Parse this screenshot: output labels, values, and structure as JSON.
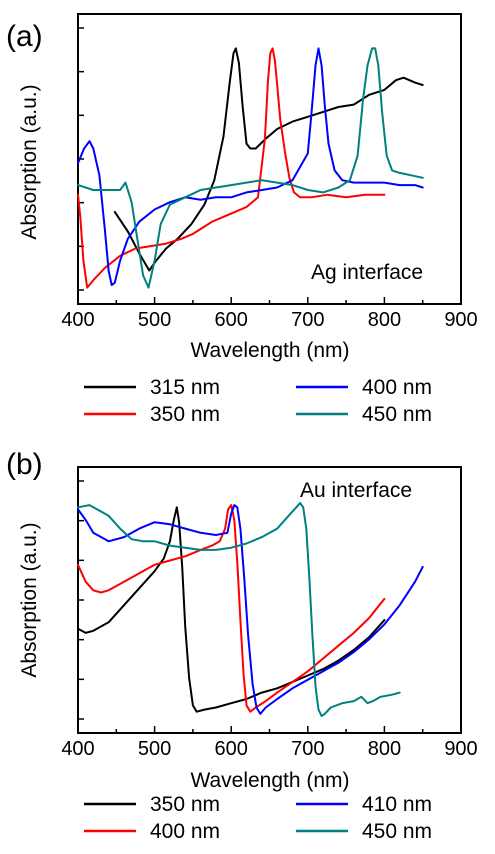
{
  "chart_data": [
    {
      "type": "line",
      "panel_label": "(a)",
      "annotation": "Ag interface",
      "xlabel": "Wavelength (nm)",
      "ylabel": "Absorption (a.u.)",
      "xlim": [
        400,
        900
      ],
      "ylim": [
        0,
        1.0
      ],
      "x_ticks": [
        400,
        500,
        600,
        700,
        800,
        900
      ],
      "x_tick_labels": [
        "400",
        "500",
        "600",
        "700",
        "800",
        "900"
      ],
      "legend_position": "below",
      "series": [
        {
          "name": "315 nm",
          "color": "#000000",
          "x": [
            448,
            465,
            480,
            493,
            502,
            515,
            530,
            548,
            565,
            578,
            590,
            598,
            603,
            606,
            610,
            615,
            620,
            625,
            632,
            645,
            660,
            680,
            700,
            720,
            740,
            760,
            780,
            800,
            815,
            825,
            840,
            850
          ],
          "y": [
            0.32,
            0.24,
            0.15,
            0.08,
            0.12,
            0.17,
            0.21,
            0.27,
            0.35,
            0.45,
            0.63,
            0.85,
            0.97,
            0.99,
            0.93,
            0.75,
            0.6,
            0.58,
            0.58,
            0.62,
            0.66,
            0.69,
            0.71,
            0.73,
            0.75,
            0.76,
            0.8,
            0.82,
            0.86,
            0.87,
            0.85,
            0.84
          ]
        },
        {
          "name": "350 nm",
          "color": "#ff0000",
          "x": [
            400,
            403,
            407,
            412,
            420,
            435,
            455,
            475,
            495,
            515,
            535,
            550,
            565,
            575,
            590,
            605,
            620,
            635,
            644,
            648,
            651,
            654,
            657,
            660,
            664,
            670,
            676,
            682,
            690,
            705,
            725,
            750,
            775,
            800
          ],
          "y": [
            0.39,
            0.3,
            0.12,
            0.01,
            0.04,
            0.09,
            0.14,
            0.17,
            0.18,
            0.19,
            0.21,
            0.23,
            0.26,
            0.28,
            0.3,
            0.32,
            0.34,
            0.38,
            0.62,
            0.86,
            0.97,
            0.99,
            0.94,
            0.84,
            0.7,
            0.57,
            0.46,
            0.4,
            0.38,
            0.38,
            0.39,
            0.38,
            0.39,
            0.39
          ]
        },
        {
          "name": "400 nm",
          "color": "#0000ff",
          "x": [
            400,
            408,
            415,
            420,
            428,
            435,
            440,
            444,
            448,
            455,
            465,
            480,
            500,
            520,
            540,
            560,
            580,
            600,
            620,
            640,
            660,
            680,
            700,
            705,
            710,
            714,
            718,
            722,
            727,
            735,
            745,
            760,
            780,
            800,
            820,
            840,
            850
          ],
          "y": [
            0.52,
            0.58,
            0.61,
            0.58,
            0.47,
            0.25,
            0.08,
            0.02,
            0.03,
            0.12,
            0.21,
            0.28,
            0.33,
            0.36,
            0.38,
            0.37,
            0.38,
            0.38,
            0.4,
            0.41,
            0.42,
            0.45,
            0.56,
            0.73,
            0.92,
            0.99,
            0.92,
            0.76,
            0.6,
            0.49,
            0.45,
            0.44,
            0.44,
            0.44,
            0.43,
            0.43,
            0.42
          ]
        },
        {
          "name": "450 nm",
          "color": "#008080",
          "x": [
            400,
            420,
            440,
            455,
            462,
            470,
            478,
            485,
            492,
            500,
            508,
            520,
            540,
            560,
            580,
            600,
            620,
            640,
            660,
            680,
            700,
            720,
            740,
            755,
            765,
            772,
            778,
            784,
            788,
            792,
            797,
            803,
            810,
            820,
            835,
            850
          ],
          "y": [
            0.43,
            0.41,
            0.41,
            0.41,
            0.44,
            0.36,
            0.2,
            0.06,
            0.01,
            0.12,
            0.27,
            0.35,
            0.38,
            0.41,
            0.42,
            0.43,
            0.44,
            0.45,
            0.44,
            0.43,
            0.41,
            0.4,
            0.42,
            0.45,
            0.55,
            0.78,
            0.92,
            0.99,
            0.99,
            0.92,
            0.73,
            0.55,
            0.49,
            0.48,
            0.47,
            0.46
          ]
        }
      ]
    },
    {
      "type": "line",
      "panel_label": "(b)",
      "annotation": "Au interface",
      "xlabel": "Wavelength (nm)",
      "ylabel": "Absorption (a.u.)",
      "xlim": [
        400,
        900
      ],
      "ylim": [
        0,
        1.0
      ],
      "x_ticks": [
        400,
        500,
        600,
        700,
        800,
        900
      ],
      "x_tick_labels": [
        "400",
        "500",
        "600",
        "700",
        "800",
        "900"
      ],
      "legend_position": "below",
      "series": [
        {
          "name": "350 nm",
          "color": "#000000",
          "x": [
            400,
            410,
            420,
            440,
            460,
            480,
            500,
            512,
            520,
            525,
            529,
            532,
            536,
            540,
            545,
            550,
            555,
            565,
            580,
            600,
            620,
            640,
            660,
            680,
            700,
            720,
            740,
            760,
            780,
            800
          ],
          "y": [
            0.41,
            0.39,
            0.4,
            0.44,
            0.52,
            0.6,
            0.68,
            0.74,
            0.82,
            0.92,
            0.98,
            0.91,
            0.7,
            0.42,
            0.18,
            0.05,
            0.02,
            0.03,
            0.04,
            0.06,
            0.08,
            0.11,
            0.13,
            0.16,
            0.19,
            0.22,
            0.26,
            0.31,
            0.37,
            0.45
          ]
        },
        {
          "name": "400 nm",
          "color": "#ff0000",
          "x": [
            400,
            410,
            420,
            430,
            440,
            460,
            480,
            500,
            520,
            540,
            560,
            575,
            585,
            592,
            596,
            600,
            604,
            608,
            612,
            616,
            620,
            625,
            632,
            645,
            660,
            680,
            700,
            720,
            740,
            760,
            780,
            800
          ],
          "y": [
            0.71,
            0.63,
            0.59,
            0.58,
            0.59,
            0.63,
            0.67,
            0.71,
            0.73,
            0.75,
            0.78,
            0.8,
            0.82,
            0.88,
            0.97,
            0.99,
            0.92,
            0.72,
            0.45,
            0.2,
            0.05,
            0.02,
            0.04,
            0.07,
            0.11,
            0.16,
            0.21,
            0.27,
            0.33,
            0.39,
            0.46,
            0.55
          ]
        },
        {
          "name": "410 nm",
          "color": "#0000ff",
          "x": [
            400,
            410,
            420,
            440,
            460,
            480,
            500,
            520,
            540,
            560,
            580,
            595,
            600,
            604,
            608,
            612,
            617,
            622,
            628,
            633,
            638,
            645,
            660,
            680,
            700,
            720,
            740,
            760,
            780,
            800,
            820,
            840,
            850
          ],
          "y": [
            0.97,
            0.92,
            0.86,
            0.82,
            0.84,
            0.88,
            0.91,
            0.9,
            0.88,
            0.86,
            0.85,
            0.86,
            0.95,
            0.99,
            0.98,
            0.88,
            0.65,
            0.38,
            0.15,
            0.04,
            0.01,
            0.04,
            0.08,
            0.13,
            0.17,
            0.21,
            0.25,
            0.3,
            0.36,
            0.43,
            0.52,
            0.63,
            0.7
          ]
        },
        {
          "name": "450 nm",
          "color": "#008080",
          "x": [
            400,
            415,
            425,
            440,
            455,
            470,
            485,
            500,
            520,
            540,
            560,
            580,
            600,
            620,
            640,
            660,
            675,
            685,
            690,
            694,
            698,
            702,
            706,
            710,
            714,
            718,
            722,
            730,
            745,
            760,
            770,
            778,
            785,
            795,
            810,
            820
          ],
          "y": [
            0.98,
            0.99,
            0.97,
            0.94,
            0.88,
            0.83,
            0.82,
            0.82,
            0.8,
            0.79,
            0.78,
            0.78,
            0.79,
            0.81,
            0.84,
            0.88,
            0.94,
            0.98,
            1.0,
            0.98,
            0.88,
            0.65,
            0.38,
            0.14,
            0.03,
            0.0,
            0.01,
            0.04,
            0.06,
            0.07,
            0.09,
            0.06,
            0.07,
            0.09,
            0.1,
            0.11
          ]
        }
      ]
    }
  ]
}
